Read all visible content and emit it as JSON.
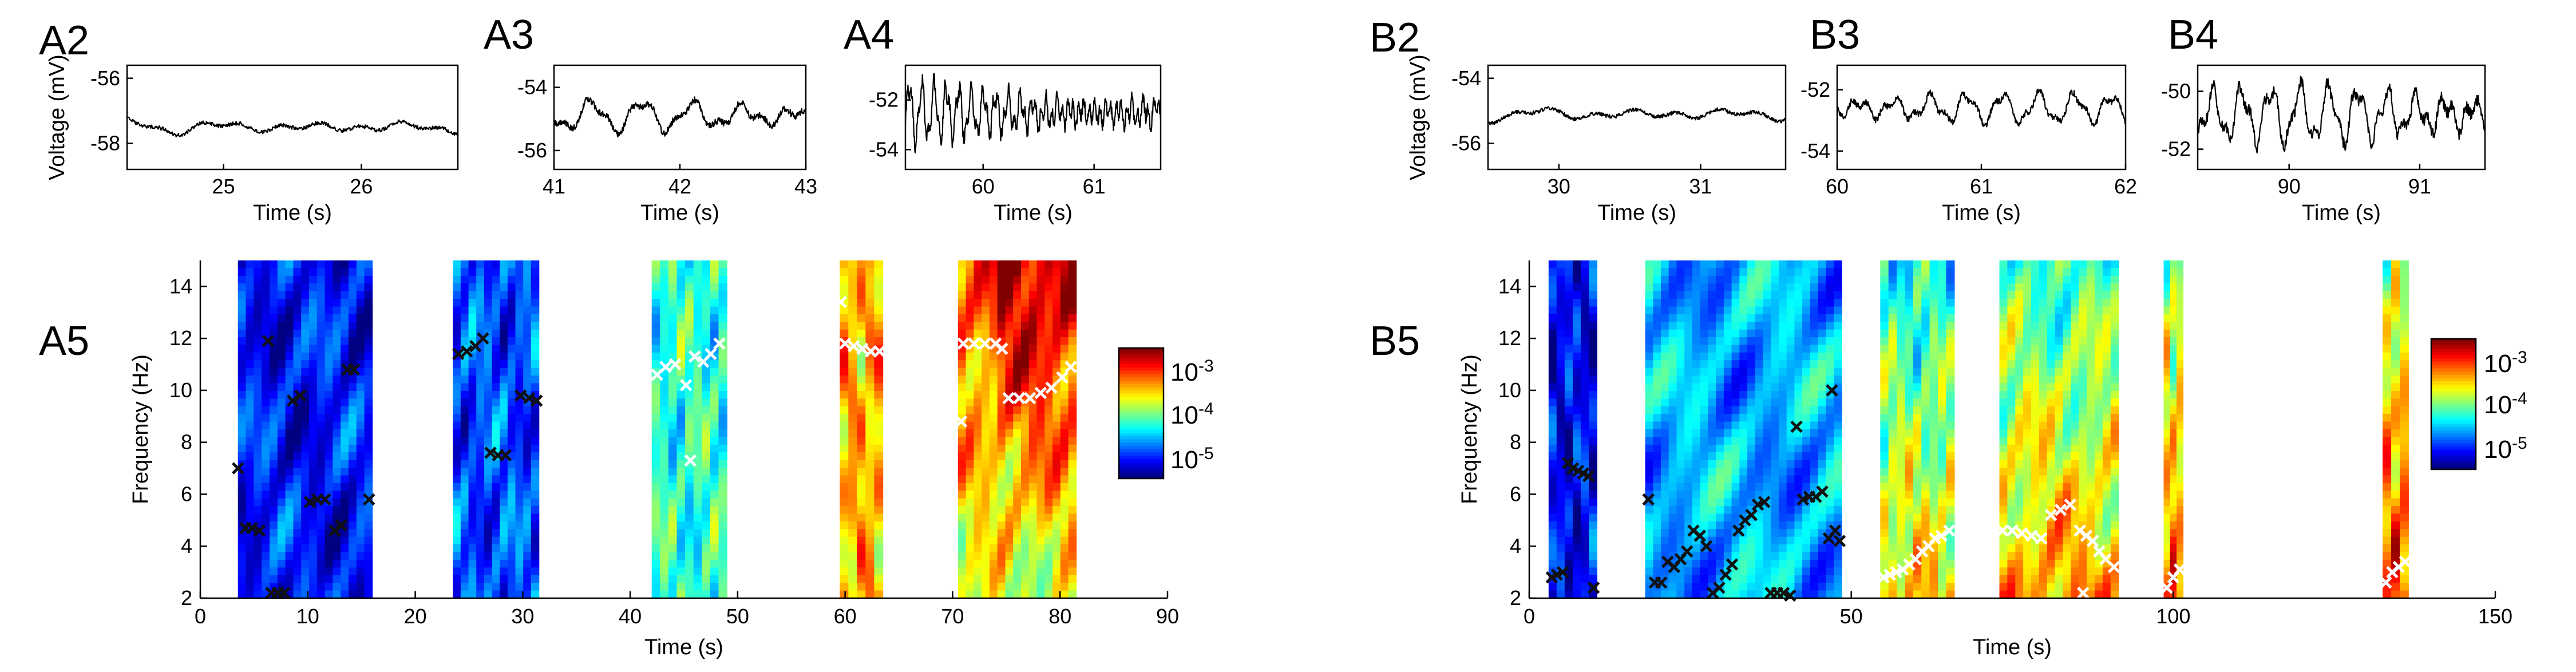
{
  "colors": {
    "cold": "#0a2bd6",
    "hot": "#d61a0a",
    "marker_black": "#111111",
    "marker_white": "#ffffff"
  },
  "chart_data": [
    {
      "id": "A2",
      "panel_label": "A2",
      "type": "line",
      "xlabel": "Time (s)",
      "ylabel": "Voltage (mV)",
      "xlim": [
        24.3,
        26.7
      ],
      "ylim": [
        -58.8,
        -55.6
      ],
      "xticks": [
        25,
        26
      ],
      "yticks": [
        -56,
        -58
      ],
      "amp": 0.25,
      "center": -57.5,
      "dom_hz": 1.5,
      "seed": 2
    },
    {
      "id": "A3",
      "panel_label": "A3",
      "type": "line",
      "xlabel": "Time (s)",
      "ylabel": "",
      "xlim": [
        41,
        43
      ],
      "ylim": [
        -56.6,
        -53.3
      ],
      "xticks": [
        41,
        42,
        43
      ],
      "yticks": [
        -54,
        -56
      ],
      "amp": 0.45,
      "center": -54.9,
      "dom_hz": 2.5,
      "seed": 3
    },
    {
      "id": "A4",
      "panel_label": "A4",
      "type": "line",
      "xlabel": "Time (s)",
      "ylabel": "",
      "xlim": [
        59.3,
        61.6
      ],
      "ylim": [
        -54.8,
        -50.6
      ],
      "xticks": [
        60,
        61
      ],
      "yticks": [
        -52,
        -54
      ],
      "amp": 1.1,
      "center": -52.5,
      "dom_hz": 9,
      "seed": 4
    },
    {
      "id": "B2",
      "panel_label": "B2",
      "type": "line",
      "xlabel": "Time (s)",
      "ylabel": "Voltage (mV)",
      "xlim": [
        29.5,
        31.6
      ],
      "ylim": [
        -56.8,
        -53.6
      ],
      "xticks": [
        30,
        31
      ],
      "yticks": [
        -54,
        -56
      ],
      "amp": 0.25,
      "center": -55.1,
      "dom_hz": 1.5,
      "seed": 5
    },
    {
      "id": "B3",
      "panel_label": "B3",
      "type": "line",
      "xlabel": "Time (s)",
      "ylabel": "",
      "xlim": [
        60,
        62
      ],
      "ylim": [
        -54.6,
        -51.2
      ],
      "xticks": [
        60,
        61,
        62
      ],
      "yticks": [
        -52,
        -54
      ],
      "amp": 0.45,
      "center": -52.6,
      "dom_hz": 4,
      "seed": 6
    },
    {
      "id": "B4",
      "panel_label": "B4",
      "type": "line",
      "xlabel": "Time (s)",
      "ylabel": "",
      "xlim": [
        89.3,
        91.5
      ],
      "ylim": [
        -52.7,
        -49.1
      ],
      "xticks": [
        90,
        91
      ],
      "yticks": [
        -50,
        -52
      ],
      "amp": 0.9,
      "center": -50.8,
      "dom_hz": 4.5,
      "seed": 7
    },
    {
      "id": "A5",
      "panel_label": "A5",
      "type": "heatmap",
      "xlabel": "Time (s)",
      "ylabel": "Frequency (Hz)",
      "xlim": [
        0,
        90
      ],
      "ylim": [
        2,
        15
      ],
      "xticks": [
        0,
        10,
        20,
        30,
        40,
        50,
        60,
        70,
        80,
        90
      ],
      "yticks": [
        2,
        4,
        6,
        8,
        10,
        12,
        14
      ],
      "colorbar": {
        "ticks": [
          "10-3",
          "10-4",
          "10-5"
        ],
        "tick_labels": [
          {
            "base": "10",
            "exp": "-3"
          },
          {
            "base": "10",
            "exp": "-4"
          },
          {
            "base": "10",
            "exp": "-5"
          }
        ]
      },
      "segments": [
        {
          "x": [
            3.5,
            16
          ],
          "level": 0.14
        },
        {
          "x": [
            23.5,
            31.5
          ],
          "level": 0.2
        },
        {
          "x": [
            42,
            49
          ],
          "level": 0.42
        },
        {
          "x": [
            59.5,
            63.5
          ],
          "level": 0.7
        },
        {
          "x": [
            70.5,
            81.5
          ],
          "level": 0.74,
          "hot_region": true
        }
      ],
      "black_markers": [
        [
          3.5,
          7.0
        ],
        [
          4.2,
          4.7
        ],
        [
          4.8,
          4.7
        ],
        [
          5.5,
          4.6
        ],
        [
          6.3,
          11.9
        ],
        [
          6.6,
          2.2
        ],
        [
          7.2,
          2.2
        ],
        [
          7.8,
          2.2
        ],
        [
          8.6,
          9.6
        ],
        [
          9.3,
          9.8
        ],
        [
          10.2,
          5.7
        ],
        [
          10.9,
          5.8
        ],
        [
          11.6,
          5.8
        ],
        [
          12.5,
          4.6
        ],
        [
          13.1,
          4.8
        ],
        [
          13.7,
          10.8
        ],
        [
          14.3,
          10.8
        ],
        [
          15.7,
          5.8
        ],
        [
          24.0,
          11.4
        ],
        [
          24.8,
          11.5
        ],
        [
          25.6,
          11.7
        ],
        [
          26.3,
          12.0
        ],
        [
          27.0,
          7.6
        ],
        [
          27.7,
          7.5
        ],
        [
          28.4,
          7.5
        ],
        [
          29.8,
          9.8
        ],
        [
          30.6,
          9.7
        ],
        [
          31.3,
          9.6
        ]
      ],
      "white_markers": [
        [
          42.5,
          10.6
        ],
        [
          43.3,
          10.9
        ],
        [
          44.2,
          11.0
        ],
        [
          45.2,
          10.2
        ],
        [
          46.0,
          11.3
        ],
        [
          46.8,
          11.1
        ],
        [
          47.5,
          11.4
        ],
        [
          48.3,
          11.8
        ],
        [
          45.6,
          7.3
        ],
        [
          59.6,
          13.4
        ],
        [
          60.0,
          11.8
        ],
        [
          60.8,
          11.7
        ],
        [
          61.6,
          11.6
        ],
        [
          62.4,
          11.5
        ],
        [
          63.2,
          11.5
        ],
        [
          71.0,
          11.8
        ],
        [
          72.0,
          11.8
        ],
        [
          73.0,
          11.8
        ],
        [
          74.0,
          11.8
        ],
        [
          74.6,
          11.6
        ],
        [
          75.2,
          9.7
        ],
        [
          76.2,
          9.7
        ],
        [
          77.2,
          9.7
        ],
        [
          78.2,
          9.9
        ],
        [
          79.2,
          10.1
        ],
        [
          80.2,
          10.5
        ],
        [
          81.0,
          10.9
        ],
        [
          70.8,
          8.8
        ]
      ]
    },
    {
      "id": "B5",
      "panel_label": "B5",
      "type": "heatmap",
      "xlabel": "Time (s)",
      "ylabel": "Frequency (Hz)",
      "xlim": [
        0,
        150
      ],
      "ylim": [
        2,
        15
      ],
      "xticks": [
        0,
        50,
        100,
        150
      ],
      "yticks": [
        2,
        4,
        6,
        8,
        10,
        12,
        14
      ],
      "colorbar": {
        "ticks": [
          "10-3",
          "10-4",
          "10-5"
        ],
        "tick_labels": [
          {
            "base": "10",
            "exp": "-3"
          },
          {
            "base": "10",
            "exp": "-4"
          },
          {
            "base": "10",
            "exp": "-5"
          }
        ]
      },
      "segments": [
        {
          "x": [
            3,
            10.5
          ],
          "level": 0.12
        },
        {
          "x": [
            18,
            48.5
          ],
          "level": 0.3
        },
        {
          "x": [
            54.5,
            66
          ],
          "level": 0.5,
          "low_hot": true
        },
        {
          "x": [
            73,
            91.5
          ],
          "level": 0.55,
          "low_hot": true
        },
        {
          "x": [
            98.5,
            101.5
          ],
          "level": 0.62,
          "low_hot": true
        },
        {
          "x": [
            132.5,
            136.5
          ],
          "level": 0.66,
          "low_hot": true
        }
      ],
      "black_markers": [
        [
          3.5,
          2.8
        ],
        [
          4.3,
          2.9
        ],
        [
          5.2,
          3.0
        ],
        [
          6.0,
          7.2
        ],
        [
          6.8,
          7.0
        ],
        [
          7.6,
          6.9
        ],
        [
          8.4,
          6.8
        ],
        [
          9.2,
          6.7
        ],
        [
          10.0,
          2.4
        ],
        [
          18.5,
          5.8
        ],
        [
          19.5,
          2.6
        ],
        [
          20.5,
          2.6
        ],
        [
          21.5,
          3.4
        ],
        [
          22.5,
          3.2
        ],
        [
          23.5,
          3.5
        ],
        [
          24.5,
          3.8
        ],
        [
          25.5,
          4.6
        ],
        [
          26.5,
          4.4
        ],
        [
          27.5,
          4.0
        ],
        [
          28.5,
          2.2
        ],
        [
          29.5,
          2.4
        ],
        [
          30.5,
          2.9
        ],
        [
          31.5,
          3.3
        ],
        [
          32.5,
          4.6
        ],
        [
          33.5,
          5.0
        ],
        [
          34.5,
          5.2
        ],
        [
          35.5,
          5.6
        ],
        [
          36.5,
          5.7
        ],
        [
          37.5,
          2.2
        ],
        [
          38.5,
          2.2
        ],
        [
          39.5,
          2.2
        ],
        [
          40.5,
          2.1
        ],
        [
          41.5,
          8.6
        ],
        [
          42.5,
          5.8
        ],
        [
          43.5,
          5.9
        ],
        [
          44.5,
          5.9
        ],
        [
          45.5,
          6.1
        ],
        [
          46.5,
          4.3
        ],
        [
          47.0,
          10.0
        ],
        [
          47.5,
          4.6
        ],
        [
          48.2,
          4.2
        ]
      ],
      "white_markers": [
        [
          55.0,
          2.8
        ],
        [
          56.0,
          2.9
        ],
        [
          57.0,
          3.0
        ],
        [
          58.0,
          3.1
        ],
        [
          59.0,
          3.3
        ],
        [
          60.0,
          3.5
        ],
        [
          61.0,
          3.8
        ],
        [
          62.0,
          4.0
        ],
        [
          63.0,
          4.3
        ],
        [
          64.0,
          4.4
        ],
        [
          65.2,
          4.6
        ],
        [
          73.5,
          4.6
        ],
        [
          75.0,
          4.6
        ],
        [
          76.5,
          4.5
        ],
        [
          78.0,
          4.4
        ],
        [
          79.5,
          4.3
        ],
        [
          81.0,
          5.2
        ],
        [
          82.5,
          5.4
        ],
        [
          84.0,
          5.6
        ],
        [
          85.5,
          4.6
        ],
        [
          86.5,
          4.4
        ],
        [
          87.5,
          4.2
        ],
        [
          88.5,
          3.8
        ],
        [
          89.5,
          3.5
        ],
        [
          90.8,
          3.2
        ],
        [
          86.0,
          2.2
        ],
        [
          99.0,
          2.4
        ],
        [
          100.0,
          2.8
        ],
        [
          101.0,
          3.1
        ],
        [
          133.0,
          2.6
        ],
        [
          134.0,
          3.0
        ],
        [
          135.0,
          3.2
        ],
        [
          136.0,
          3.4
        ]
      ]
    }
  ]
}
